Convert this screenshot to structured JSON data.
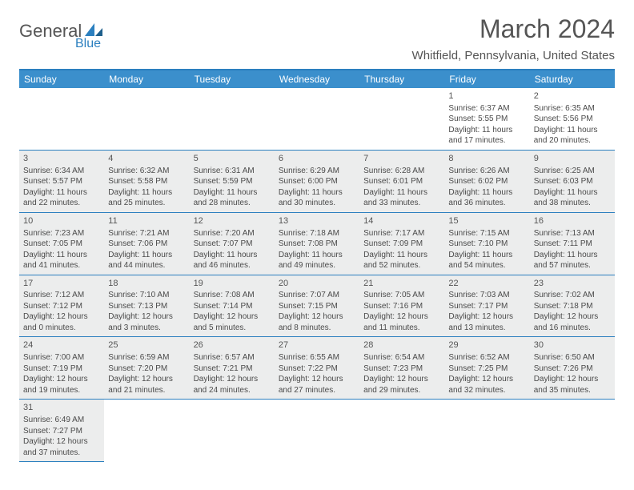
{
  "brand": {
    "name": "General",
    "sub": "Blue",
    "accent": "#2b7fbf"
  },
  "title": "March 2024",
  "location": "Whitfield, Pennsylvania, United States",
  "colors": {
    "header_bg": "#3b8fcc",
    "header_text": "#ffffff",
    "border": "#2b7fbf",
    "shade_bg": "#eceded",
    "text": "#4a4a4a",
    "title_text": "#555555"
  },
  "day_headers": [
    "Sunday",
    "Monday",
    "Tuesday",
    "Wednesday",
    "Thursday",
    "Friday",
    "Saturday"
  ],
  "days": [
    {
      "date": "",
      "sunrise": "",
      "sunset": "",
      "daylight": "",
      "shade": false
    },
    {
      "date": "",
      "sunrise": "",
      "sunset": "",
      "daylight": "",
      "shade": false
    },
    {
      "date": "",
      "sunrise": "",
      "sunset": "",
      "daylight": "",
      "shade": false
    },
    {
      "date": "",
      "sunrise": "",
      "sunset": "",
      "daylight": "",
      "shade": false
    },
    {
      "date": "",
      "sunrise": "",
      "sunset": "",
      "daylight": "",
      "shade": false
    },
    {
      "date": "1",
      "sunrise": "Sunrise: 6:37 AM",
      "sunset": "Sunset: 5:55 PM",
      "daylight": "Daylight: 11 hours and 17 minutes.",
      "shade": false
    },
    {
      "date": "2",
      "sunrise": "Sunrise: 6:35 AM",
      "sunset": "Sunset: 5:56 PM",
      "daylight": "Daylight: 11 hours and 20 minutes.",
      "shade": false
    },
    {
      "date": "3",
      "sunrise": "Sunrise: 6:34 AM",
      "sunset": "Sunset: 5:57 PM",
      "daylight": "Daylight: 11 hours and 22 minutes.",
      "shade": true
    },
    {
      "date": "4",
      "sunrise": "Sunrise: 6:32 AM",
      "sunset": "Sunset: 5:58 PM",
      "daylight": "Daylight: 11 hours and 25 minutes.",
      "shade": true
    },
    {
      "date": "5",
      "sunrise": "Sunrise: 6:31 AM",
      "sunset": "Sunset: 5:59 PM",
      "daylight": "Daylight: 11 hours and 28 minutes.",
      "shade": true
    },
    {
      "date": "6",
      "sunrise": "Sunrise: 6:29 AM",
      "sunset": "Sunset: 6:00 PM",
      "daylight": "Daylight: 11 hours and 30 minutes.",
      "shade": true
    },
    {
      "date": "7",
      "sunrise": "Sunrise: 6:28 AM",
      "sunset": "Sunset: 6:01 PM",
      "daylight": "Daylight: 11 hours and 33 minutes.",
      "shade": true
    },
    {
      "date": "8",
      "sunrise": "Sunrise: 6:26 AM",
      "sunset": "Sunset: 6:02 PM",
      "daylight": "Daylight: 11 hours and 36 minutes.",
      "shade": true
    },
    {
      "date": "9",
      "sunrise": "Sunrise: 6:25 AM",
      "sunset": "Sunset: 6:03 PM",
      "daylight": "Daylight: 11 hours and 38 minutes.",
      "shade": true
    },
    {
      "date": "10",
      "sunrise": "Sunrise: 7:23 AM",
      "sunset": "Sunset: 7:05 PM",
      "daylight": "Daylight: 11 hours and 41 minutes.",
      "shade": true
    },
    {
      "date": "11",
      "sunrise": "Sunrise: 7:21 AM",
      "sunset": "Sunset: 7:06 PM",
      "daylight": "Daylight: 11 hours and 44 minutes.",
      "shade": true
    },
    {
      "date": "12",
      "sunrise": "Sunrise: 7:20 AM",
      "sunset": "Sunset: 7:07 PM",
      "daylight": "Daylight: 11 hours and 46 minutes.",
      "shade": true
    },
    {
      "date": "13",
      "sunrise": "Sunrise: 7:18 AM",
      "sunset": "Sunset: 7:08 PM",
      "daylight": "Daylight: 11 hours and 49 minutes.",
      "shade": true
    },
    {
      "date": "14",
      "sunrise": "Sunrise: 7:17 AM",
      "sunset": "Sunset: 7:09 PM",
      "daylight": "Daylight: 11 hours and 52 minutes.",
      "shade": true
    },
    {
      "date": "15",
      "sunrise": "Sunrise: 7:15 AM",
      "sunset": "Sunset: 7:10 PM",
      "daylight": "Daylight: 11 hours and 54 minutes.",
      "shade": true
    },
    {
      "date": "16",
      "sunrise": "Sunrise: 7:13 AM",
      "sunset": "Sunset: 7:11 PM",
      "daylight": "Daylight: 11 hours and 57 minutes.",
      "shade": true
    },
    {
      "date": "17",
      "sunrise": "Sunrise: 7:12 AM",
      "sunset": "Sunset: 7:12 PM",
      "daylight": "Daylight: 12 hours and 0 minutes.",
      "shade": true
    },
    {
      "date": "18",
      "sunrise": "Sunrise: 7:10 AM",
      "sunset": "Sunset: 7:13 PM",
      "daylight": "Daylight: 12 hours and 3 minutes.",
      "shade": true
    },
    {
      "date": "19",
      "sunrise": "Sunrise: 7:08 AM",
      "sunset": "Sunset: 7:14 PM",
      "daylight": "Daylight: 12 hours and 5 minutes.",
      "shade": true
    },
    {
      "date": "20",
      "sunrise": "Sunrise: 7:07 AM",
      "sunset": "Sunset: 7:15 PM",
      "daylight": "Daylight: 12 hours and 8 minutes.",
      "shade": true
    },
    {
      "date": "21",
      "sunrise": "Sunrise: 7:05 AM",
      "sunset": "Sunset: 7:16 PM",
      "daylight": "Daylight: 12 hours and 11 minutes.",
      "shade": true
    },
    {
      "date": "22",
      "sunrise": "Sunrise: 7:03 AM",
      "sunset": "Sunset: 7:17 PM",
      "daylight": "Daylight: 12 hours and 13 minutes.",
      "shade": true
    },
    {
      "date": "23",
      "sunrise": "Sunrise: 7:02 AM",
      "sunset": "Sunset: 7:18 PM",
      "daylight": "Daylight: 12 hours and 16 minutes.",
      "shade": true
    },
    {
      "date": "24",
      "sunrise": "Sunrise: 7:00 AM",
      "sunset": "Sunset: 7:19 PM",
      "daylight": "Daylight: 12 hours and 19 minutes.",
      "shade": true
    },
    {
      "date": "25",
      "sunrise": "Sunrise: 6:59 AM",
      "sunset": "Sunset: 7:20 PM",
      "daylight": "Daylight: 12 hours and 21 minutes.",
      "shade": true
    },
    {
      "date": "26",
      "sunrise": "Sunrise: 6:57 AM",
      "sunset": "Sunset: 7:21 PM",
      "daylight": "Daylight: 12 hours and 24 minutes.",
      "shade": true
    },
    {
      "date": "27",
      "sunrise": "Sunrise: 6:55 AM",
      "sunset": "Sunset: 7:22 PM",
      "daylight": "Daylight: 12 hours and 27 minutes.",
      "shade": true
    },
    {
      "date": "28",
      "sunrise": "Sunrise: 6:54 AM",
      "sunset": "Sunset: 7:23 PM",
      "daylight": "Daylight: 12 hours and 29 minutes.",
      "shade": true
    },
    {
      "date": "29",
      "sunrise": "Sunrise: 6:52 AM",
      "sunset": "Sunset: 7:25 PM",
      "daylight": "Daylight: 12 hours and 32 minutes.",
      "shade": true
    },
    {
      "date": "30",
      "sunrise": "Sunrise: 6:50 AM",
      "sunset": "Sunset: 7:26 PM",
      "daylight": "Daylight: 12 hours and 35 minutes.",
      "shade": true
    },
    {
      "date": "31",
      "sunrise": "Sunrise: 6:49 AM",
      "sunset": "Sunset: 7:27 PM",
      "daylight": "Daylight: 12 hours and 37 minutes.",
      "shade": true
    }
  ]
}
